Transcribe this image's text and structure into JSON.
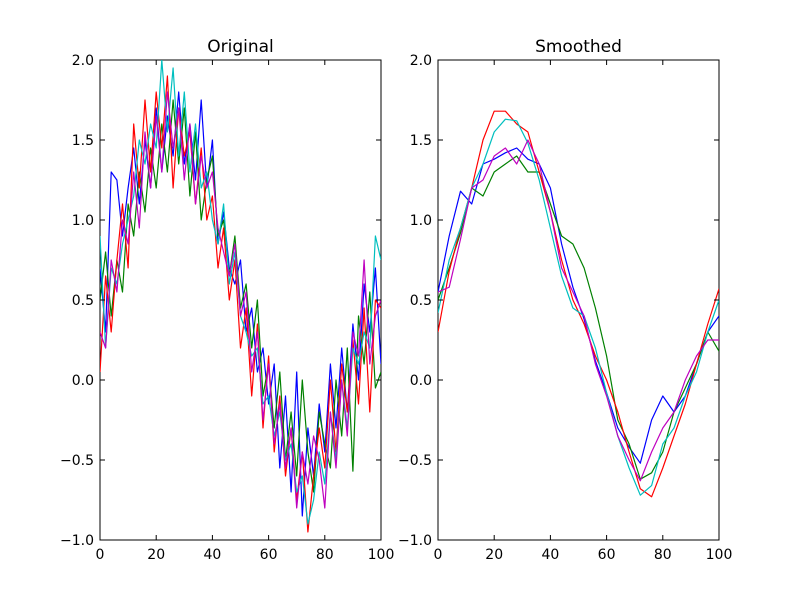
{
  "chart_data": [
    {
      "type": "line",
      "title": "Original",
      "xlabel": "",
      "ylabel": "",
      "xlim": [
        0,
        100
      ],
      "ylim": [
        -1.0,
        2.0
      ],
      "xticks": [
        "0",
        "20",
        "40",
        "60",
        "80",
        "100"
      ],
      "yticks": [
        "−1.0",
        "−0.5",
        "0.0",
        "0.5",
        "1.0",
        "1.5",
        "2.0"
      ],
      "grid": false,
      "x": [
        0,
        2,
        4,
        6,
        8,
        10,
        12,
        14,
        16,
        18,
        20,
        22,
        24,
        26,
        28,
        30,
        32,
        34,
        36,
        38,
        40,
        42,
        44,
        46,
        48,
        50,
        52,
        54,
        56,
        58,
        60,
        62,
        64,
        66,
        68,
        70,
        72,
        74,
        76,
        78,
        80,
        82,
        84,
        86,
        88,
        90,
        92,
        94,
        96,
        98,
        100
      ],
      "series": [
        {
          "color": "#0000ff",
          "values": [
            0.7,
            0.3,
            1.3,
            1.25,
            0.9,
            1.2,
            1.45,
            1.1,
            1.5,
            1.2,
            1.7,
            1.3,
            1.65,
            1.4,
            1.8,
            1.35,
            1.6,
            1.25,
            1.75,
            1.2,
            1.5,
            0.85,
            1.05,
            0.7,
            0.6,
            0.75,
            0.3,
            0.45,
            0.05,
            0.2,
            -0.15,
            0.1,
            -0.55,
            -0.1,
            -0.7,
            0.05,
            -0.85,
            -0.3,
            -0.6,
            -0.15,
            -0.45,
            0.1,
            -0.3,
            0.2,
            -0.2,
            0.35,
            0.0,
            0.6,
            0.3,
            0.7,
            0.1
          ]
        },
        {
          "color": "#008000",
          "values": [
            0.5,
            0.8,
            0.4,
            0.75,
            0.55,
            1.1,
            0.9,
            1.3,
            1.05,
            1.45,
            1.2,
            1.6,
            1.3,
            1.75,
            1.35,
            1.7,
            1.15,
            1.55,
            1.0,
            1.25,
            1.4,
            0.9,
            1.0,
            0.65,
            0.9,
            0.45,
            0.6,
            0.2,
            0.5,
            -0.1,
            0.1,
            -0.3,
            0.05,
            -0.5,
            -0.2,
            -0.6,
            0.0,
            -0.45,
            -0.7,
            -0.2,
            -0.4,
            -0.55,
            0.0,
            -0.35,
            0.2,
            -0.57,
            0.4,
            0.1,
            0.55,
            -0.05,
            0.05
          ]
        },
        {
          "color": "#ff0000",
          "values": [
            0.05,
            0.65,
            0.3,
            0.75,
            1.1,
            0.7,
            1.6,
            1.2,
            1.75,
            1.3,
            1.8,
            1.45,
            1.9,
            1.2,
            1.7,
            1.4,
            1.55,
            1.1,
            1.45,
            1.0,
            1.15,
            0.7,
            0.95,
            0.5,
            0.75,
            0.2,
            0.45,
            -0.1,
            0.35,
            -0.3,
            0.15,
            -0.45,
            -0.1,
            -0.6,
            -0.3,
            -0.75,
            -0.45,
            -0.95,
            -0.6,
            -0.3,
            -0.55,
            0.0,
            -0.45,
            0.1,
            -0.2,
            0.25,
            -0.15,
            0.45,
            -0.2,
            0.5,
            0.45
          ]
        },
        {
          "color": "#00bfbf",
          "values": [
            0.9,
            0.2,
            0.7,
            0.6,
            0.85,
            1.0,
            1.15,
            1.5,
            1.35,
            1.6,
            1.45,
            2.0,
            1.55,
            1.95,
            1.4,
            1.8,
            1.3,
            1.6,
            1.2,
            1.3,
            1.0,
            0.85,
            1.1,
            0.6,
            0.8,
            0.4,
            0.3,
            0.15,
            0.2,
            -0.15,
            -0.1,
            -0.35,
            -0.2,
            -0.5,
            -0.4,
            -0.7,
            -0.6,
            -0.9,
            -0.75,
            -0.45,
            -0.65,
            -0.2,
            -0.5,
            0.0,
            -0.3,
            0.2,
            0.1,
            0.3,
            0.2,
            0.9,
            0.75
          ]
        },
        {
          "color": "#bf00bf",
          "values": [
            0.3,
            0.2,
            0.75,
            0.55,
            1.0,
            0.85,
            1.3,
            0.95,
            1.55,
            1.2,
            1.65,
            1.3,
            1.8,
            1.45,
            1.7,
            1.25,
            1.6,
            1.1,
            1.4,
            1.2,
            1.3,
            0.95,
            0.8,
            0.65,
            0.85,
            0.4,
            0.55,
            0.05,
            0.3,
            -0.25,
            0.1,
            -0.4,
            -0.15,
            -0.55,
            -0.3,
            -0.8,
            -0.45,
            -0.65,
            -0.35,
            -0.5,
            -0.8,
            -0.2,
            -0.55,
            0.0,
            -0.35,
            0.3,
            0.15,
            0.75,
            0.1,
            0.4,
            0.5
          ]
        }
      ]
    },
    {
      "type": "line",
      "title": "Smoothed",
      "xlabel": "",
      "ylabel": "",
      "xlim": [
        0,
        100
      ],
      "ylim": [
        -1.0,
        2.0
      ],
      "xticks": [
        "0",
        "20",
        "40",
        "60",
        "80",
        "100"
      ],
      "yticks": [
        "−1.0",
        "−0.5",
        "0.0",
        "0.5",
        "1.0",
        "1.5",
        "2.0"
      ],
      "grid": false,
      "x": [
        0,
        4,
        8,
        12,
        16,
        20,
        24,
        28,
        32,
        36,
        40,
        44,
        48,
        52,
        56,
        60,
        64,
        68,
        72,
        76,
        80,
        84,
        88,
        92,
        96,
        100
      ],
      "series": [
        {
          "color": "#0000ff",
          "values": [
            0.55,
            0.9,
            1.18,
            1.1,
            1.35,
            1.38,
            1.42,
            1.45,
            1.38,
            1.35,
            1.2,
            0.85,
            0.58,
            0.38,
            0.12,
            -0.08,
            -0.3,
            -0.42,
            -0.52,
            -0.25,
            -0.1,
            -0.2,
            -0.1,
            0.1,
            0.3,
            0.4
          ]
        },
        {
          "color": "#008000",
          "values": [
            0.5,
            0.7,
            0.92,
            1.2,
            1.15,
            1.3,
            1.35,
            1.4,
            1.3,
            1.3,
            1.1,
            0.9,
            0.85,
            0.7,
            0.45,
            0.15,
            -0.25,
            -0.4,
            -0.62,
            -0.58,
            -0.45,
            -0.2,
            -0.05,
            0.1,
            0.3,
            0.18
          ]
        },
        {
          "color": "#ff0000",
          "values": [
            0.3,
            0.68,
            0.95,
            1.2,
            1.5,
            1.68,
            1.68,
            1.6,
            1.55,
            1.3,
            1.05,
            0.75,
            0.5,
            0.35,
            0.15,
            0.0,
            -0.2,
            -0.45,
            -0.68,
            -0.73,
            -0.55,
            -0.35,
            -0.15,
            0.1,
            0.35,
            0.57
          ]
        },
        {
          "color": "#00bfbf",
          "values": [
            0.42,
            0.75,
            0.95,
            1.2,
            1.35,
            1.55,
            1.63,
            1.62,
            1.48,
            1.25,
            0.95,
            0.65,
            0.45,
            0.4,
            0.2,
            -0.08,
            -0.35,
            -0.55,
            -0.72,
            -0.66,
            -0.4,
            -0.3,
            -0.1,
            0.05,
            0.3,
            0.5
          ]
        },
        {
          "color": "#bf00bf",
          "values": [
            0.55,
            0.58,
            0.88,
            1.2,
            1.25,
            1.4,
            1.45,
            1.35,
            1.5,
            1.35,
            1.05,
            0.7,
            0.55,
            0.4,
            0.1,
            -0.1,
            -0.35,
            -0.5,
            -0.63,
            -0.45,
            -0.3,
            -0.2,
            0.0,
            0.15,
            0.25,
            0.25
          ]
        }
      ]
    }
  ]
}
